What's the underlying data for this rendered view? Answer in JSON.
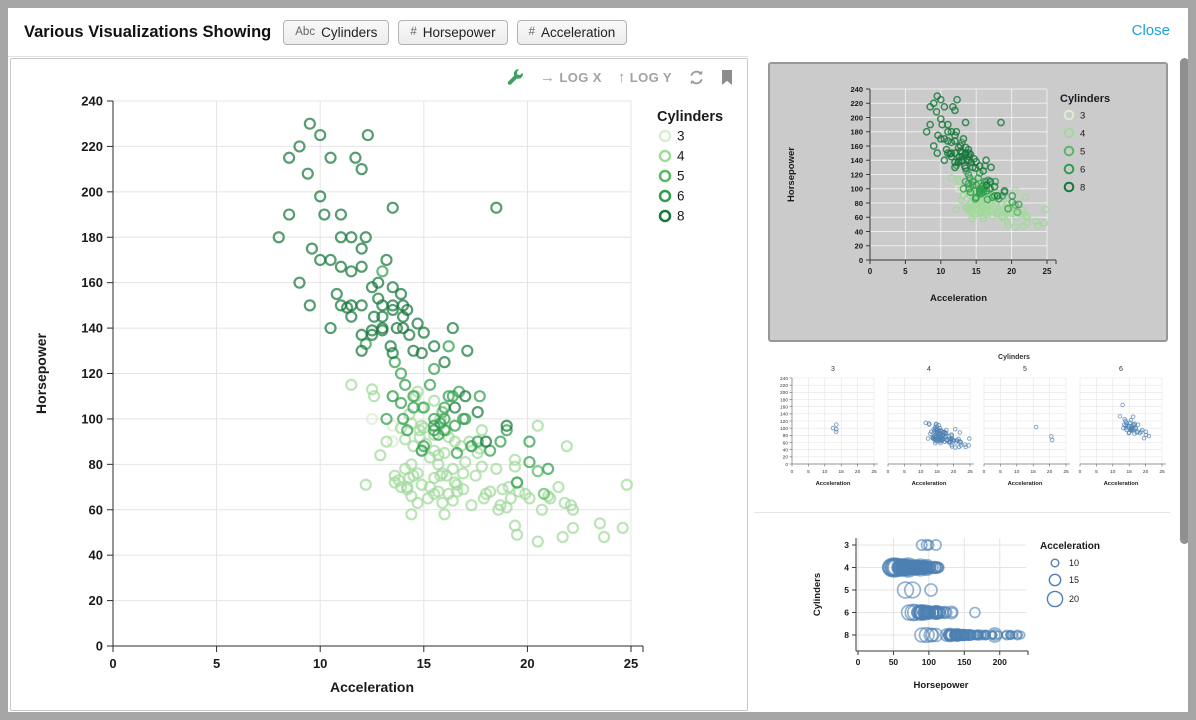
{
  "header": {
    "title": "Various Visualizations Showing",
    "fields": [
      {
        "type_icon": "Abc",
        "label": "Cylinders"
      },
      {
        "type_icon": "#",
        "label": "Horsepower"
      },
      {
        "type_icon": "#",
        "label": "Acceleration"
      }
    ],
    "close_label": "Close"
  },
  "toolbar": {
    "log_x_label": "LOG X",
    "log_y_label": "LOG Y",
    "arrow_right": "→",
    "arrow_up": "↑",
    "icons": [
      "wrench-icon",
      "refresh-icon",
      "bookmark-icon"
    ]
  },
  "ui_colors": {
    "accent_blue": "#1aa3dc",
    "wrench_green": "#3f9e63",
    "icon_gray": "#999999",
    "point_blue": "#4d80b3",
    "grid_gray": "#e4e4e4",
    "selected_thumb_bg": "#cbcbcb"
  },
  "dataset": {
    "x_field": "Acceleration",
    "y_field": "Horsepower",
    "color_field": "Cylinders",
    "groups": [
      {
        "cylinders": 3,
        "color": "#d9efcf",
        "points": [
          [
            13.5,
            97
          ],
          [
            13.5,
            90
          ],
          [
            13.5,
            110
          ],
          [
            12.5,
            100
          ]
        ]
      },
      {
        "cylinders": 4,
        "color": "#a1d99b",
        "points": [
          [
            20.5,
            46
          ],
          [
            21.7,
            48
          ],
          [
            23.7,
            48
          ],
          [
            19.5,
            49
          ],
          [
            22.2,
            52
          ],
          [
            24.6,
            52
          ],
          [
            19.4,
            53
          ],
          [
            23.5,
            54
          ],
          [
            14.4,
            58
          ],
          [
            16.0,
            58
          ],
          [
            18.6,
            60
          ],
          [
            22.2,
            60
          ],
          [
            19.0,
            61
          ],
          [
            17.3,
            62
          ],
          [
            18.7,
            62
          ],
          [
            14.7,
            63
          ],
          [
            15.9,
            63
          ],
          [
            16.4,
            64
          ],
          [
            15.2,
            65
          ],
          [
            19.2,
            65
          ],
          [
            21.1,
            65
          ],
          [
            14.4,
            66
          ],
          [
            15.5,
            67
          ],
          [
            16.2,
            67
          ],
          [
            16.6,
            68
          ],
          [
            18.2,
            68
          ],
          [
            14.2,
            69
          ],
          [
            18.8,
            69
          ],
          [
            13.9,
            70
          ],
          [
            14.2,
            70
          ],
          [
            15.3,
            70
          ],
          [
            12.2,
            71
          ],
          [
            14.9,
            71
          ],
          [
            13.6,
            72
          ],
          [
            16.5,
            72
          ],
          [
            14.3,
            74
          ],
          [
            15.5,
            74
          ],
          [
            13.6,
            75
          ],
          [
            14.5,
            75
          ],
          [
            15.8,
            75
          ],
          [
            17.5,
            75
          ],
          [
            14.7,
            76
          ],
          [
            16.9,
            76
          ],
          [
            14.1,
            78
          ],
          [
            16.4,
            78
          ],
          [
            17.8,
            79
          ],
          [
            14.4,
            80
          ],
          [
            15.7,
            80
          ],
          [
            17.0,
            81
          ],
          [
            15.3,
            83
          ],
          [
            12.9,
            84
          ],
          [
            15.7,
            84
          ],
          [
            16.0,
            85
          ],
          [
            17.6,
            85
          ],
          [
            14.9,
            86
          ],
          [
            15.5,
            86
          ],
          [
            17.7,
            87
          ],
          [
            14.5,
            88
          ],
          [
            16.8,
            88
          ],
          [
            21.9,
            88
          ],
          [
            15.1,
            89
          ],
          [
            13.2,
            90
          ],
          [
            16.5,
            90
          ],
          [
            14.1,
            91
          ],
          [
            14.8,
            92
          ],
          [
            15.5,
            93
          ],
          [
            14.8,
            95
          ],
          [
            16.1,
            95
          ],
          [
            17.8,
            95
          ],
          [
            13.9,
            96
          ],
          [
            14.9,
            97
          ],
          [
            20.5,
            97
          ],
          [
            14.4,
            98
          ],
          [
            15.8,
            100
          ],
          [
            14.3,
            102
          ],
          [
            14.9,
            105
          ],
          [
            15.5,
            108
          ],
          [
            12.6,
            110
          ],
          [
            14.6,
            110
          ],
          [
            14.7,
            112
          ],
          [
            12.5,
            113
          ],
          [
            11.5,
            115
          ],
          [
            20.7,
            60
          ],
          [
            19.9,
            67
          ],
          [
            20.1,
            65
          ],
          [
            16.9,
            69
          ],
          [
            16.6,
            71
          ],
          [
            15.9,
            76
          ],
          [
            15.7,
            68
          ],
          [
            18.5,
            78
          ],
          [
            24.8,
            71
          ],
          [
            21.5,
            70
          ],
          [
            17.3,
            88
          ],
          [
            16.1,
            75
          ],
          [
            16.2,
            92
          ],
          [
            15.0,
            96
          ],
          [
            18.0,
            67
          ],
          [
            17.9,
            65
          ],
          [
            22.1,
            62
          ],
          [
            19.6,
            68
          ],
          [
            21.8,
            63
          ],
          [
            19.1,
            70
          ],
          [
            19.4,
            79
          ],
          [
            19.4,
            82
          ],
          [
            17.2,
            90
          ],
          [
            21.0,
            66
          ],
          [
            19.5,
            72
          ],
          [
            13.8,
            73
          ]
        ]
      },
      {
        "cylinders": 5,
        "color": "#59b863",
        "points": [
          [
            15.9,
            103
          ],
          [
            20.5,
            77
          ],
          [
            20.8,
            67
          ]
        ]
      },
      {
        "cylinders": 6,
        "color": "#2f9e4c",
        "points": [
          [
            15.5,
            95
          ],
          [
            16.0,
            95
          ],
          [
            15.5,
            97
          ],
          [
            14.0,
            100
          ],
          [
            15.5,
            100
          ],
          [
            16.0,
            100
          ],
          [
            17.0,
            100
          ],
          [
            14.5,
            105
          ],
          [
            16.0,
            105
          ],
          [
            13.5,
            110
          ],
          [
            14.5,
            110
          ],
          [
            16.2,
            110
          ],
          [
            16.7,
            112
          ],
          [
            15.3,
            115
          ],
          [
            15.5,
            122
          ],
          [
            13.6,
            125
          ],
          [
            16.5,
            97
          ],
          [
            17.3,
            88
          ],
          [
            17.6,
            90
          ],
          [
            18.7,
            90
          ],
          [
            16.6,
            85
          ],
          [
            20.1,
            81
          ],
          [
            20.1,
            90
          ],
          [
            21.0,
            78
          ],
          [
            19.5,
            72
          ],
          [
            16.4,
            110
          ],
          [
            15.0,
            105
          ],
          [
            15.8,
            98
          ],
          [
            14.2,
            95
          ],
          [
            13.2,
            100
          ],
          [
            13.9,
            107
          ],
          [
            15.7,
            93
          ],
          [
            14.1,
            115
          ],
          [
            13.9,
            120
          ],
          [
            13.0,
            165
          ],
          [
            12.2,
            133
          ],
          [
            16.2,
            132
          ],
          [
            14.9,
            86
          ],
          [
            17.7,
            110
          ],
          [
            19.0,
            95
          ],
          [
            16.9,
            100
          ],
          [
            18.2,
            86
          ],
          [
            15.0,
            88
          ]
        ]
      },
      {
        "cylinders": 8,
        "color": "#15773a",
        "points": [
          [
            12.0,
            130
          ],
          [
            11.5,
            165
          ],
          [
            11.0,
            150
          ],
          [
            12.0,
            150
          ],
          [
            10.5,
            140
          ],
          [
            10.0,
            198
          ],
          [
            9.0,
            220
          ],
          [
            8.5,
            215
          ],
          [
            10.0,
            225
          ],
          [
            8.5,
            190
          ],
          [
            10.0,
            170
          ],
          [
            9.0,
            160
          ],
          [
            9.5,
            150
          ],
          [
            11.0,
            167
          ],
          [
            10.5,
            170
          ],
          [
            11.0,
            180
          ],
          [
            11.5,
            150
          ],
          [
            13.0,
            145
          ],
          [
            12.5,
            137
          ],
          [
            13.5,
            150
          ],
          [
            12.5,
            158
          ],
          [
            13.0,
            150
          ],
          [
            11.5,
            145
          ],
          [
            12.0,
            137
          ],
          [
            13.5,
            158
          ],
          [
            13.0,
            140
          ],
          [
            14.5,
            130
          ],
          [
            14.0,
            150
          ],
          [
            14.0,
            140
          ],
          [
            13.5,
            148
          ],
          [
            13.5,
            129
          ],
          [
            12.5,
            139
          ],
          [
            13.0,
            139
          ],
          [
            12.8,
            153
          ],
          [
            12.0,
            175
          ],
          [
            11.0,
            190
          ],
          [
            10.5,
            215
          ],
          [
            9.5,
            230
          ],
          [
            12.0,
            210
          ],
          [
            13.5,
            193
          ],
          [
            11.5,
            180
          ],
          [
            12.2,
            180
          ],
          [
            12.0,
            167
          ],
          [
            13.2,
            170
          ],
          [
            12.8,
            160
          ],
          [
            14.0,
            145
          ],
          [
            14.3,
            137
          ],
          [
            14.9,
            129
          ],
          [
            15.0,
            138
          ],
          [
            15.5,
            132
          ],
          [
            16.0,
            125
          ],
          [
            13.7,
            140
          ],
          [
            14.2,
            148
          ],
          [
            18.5,
            193
          ],
          [
            16.5,
            105
          ],
          [
            17.0,
            110
          ],
          [
            17.6,
            103
          ],
          [
            18.0,
            90
          ],
          [
            19.0,
            97
          ],
          [
            17.1,
            130
          ],
          [
            16.4,
            140
          ],
          [
            13.9,
            155
          ],
          [
            12.6,
            145
          ],
          [
            11.3,
            149
          ],
          [
            10.8,
            155
          ],
          [
            9.6,
            175
          ],
          [
            10.2,
            190
          ],
          [
            11.7,
            215
          ],
          [
            12.3,
            225
          ],
          [
            13.4,
            132
          ],
          [
            14.7,
            142
          ],
          [
            8.0,
            180
          ],
          [
            9.4,
            208
          ]
        ]
      }
    ]
  },
  "chart_data": [
    {
      "id": "main-scatter",
      "type": "scatter",
      "x_label": "Acceleration",
      "y_label": "Horsepower",
      "xlim": [
        0,
        25
      ],
      "ylim": [
        0,
        240
      ],
      "x_ticks": [
        0,
        5,
        10,
        15,
        20,
        25
      ],
      "y_ticks": [
        0,
        20,
        40,
        60,
        80,
        100,
        120,
        140,
        160,
        180,
        200,
        220,
        240
      ],
      "grid": true,
      "legend": {
        "title": "Cylinders",
        "entries": [
          "3",
          "4",
          "5",
          "6",
          "8"
        ],
        "position": "right"
      }
    },
    {
      "id": "thumbnail-scatter-selected",
      "type": "scatter",
      "x_label": "Acceleration",
      "y_label": "Horsepower",
      "xlim": [
        0,
        25
      ],
      "ylim": [
        0,
        240
      ],
      "x_ticks": [
        0,
        5,
        10,
        15,
        20,
        25
      ],
      "y_ticks": [
        0,
        20,
        40,
        60,
        80,
        100,
        120,
        140,
        160,
        180,
        200,
        220,
        240
      ],
      "grid": true,
      "legend": {
        "title": "Cylinders",
        "entries": [
          "3",
          "4",
          "5",
          "6",
          "8"
        ],
        "position": "right"
      }
    },
    {
      "id": "thumbnail-faceted-scatter",
      "type": "scatter-faceted",
      "title": "Cylinders",
      "facet_field": "Cylinders",
      "facet_values": [
        3,
        4,
        5,
        6
      ],
      "x_label": "Acceleration",
      "xlim": [
        0,
        25
      ],
      "ylim": [
        0,
        240
      ],
      "x_ticks": [
        0,
        5,
        10,
        15,
        20,
        25
      ],
      "y_ticks": [
        0,
        20,
        40,
        60,
        80,
        100,
        120,
        140,
        160,
        180,
        200,
        220,
        240
      ],
      "grid": true,
      "color_hex": "#4d80b3"
    },
    {
      "id": "thumbnail-bubble",
      "type": "bubble",
      "x_label": "Horsepower",
      "y_label": "Cylinders",
      "size_field": "Acceleration",
      "xlim": [
        0,
        230
      ],
      "x_ticks": [
        0,
        50,
        100,
        150,
        200
      ],
      "y_values": [
        3,
        4,
        5,
        6,
        8
      ],
      "grid": true,
      "legend": {
        "title": "Acceleration",
        "entries": [
          10,
          15,
          20
        ],
        "position": "right"
      },
      "color_hex": "#4d80b3"
    }
  ]
}
